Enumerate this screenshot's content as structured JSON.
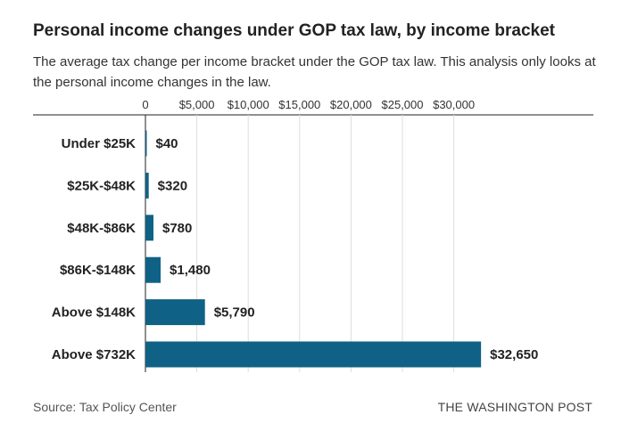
{
  "colors": {
    "bar": "#0f6285",
    "grid": "#dddddd",
    "axis": "#222222"
  },
  "chart_data": {
    "type": "bar",
    "orientation": "horizontal",
    "title": "Personal income changes under GOP tax law, by income bracket",
    "subtitle": "The average tax change per income bracket under the GOP tax law. This analysis only looks at the personal income changes in the law.",
    "categories": [
      "Under $25K",
      "$25K-$48K",
      "$48K-$86K",
      "$86K-$148K",
      "Above $148K",
      "Above $732K"
    ],
    "values": [
      40,
      320,
      780,
      1480,
      5790,
      32650
    ],
    "value_labels": [
      "$40",
      "$320",
      "$780",
      "$1,480",
      "$5,790",
      "$32,650"
    ],
    "x_ticks": [
      0,
      5000,
      10000,
      15000,
      20000,
      25000,
      30000
    ],
    "x_tick_labels": [
      "0",
      "$5,000",
      "$10,000",
      "$15,000",
      "$20,000",
      "$25,000",
      "$30,000"
    ],
    "xlim": [
      0,
      32650
    ],
    "grid": true,
    "legend": "none",
    "source": "Source: Tax Policy Center",
    "credit": "THE WASHINGTON POST"
  }
}
